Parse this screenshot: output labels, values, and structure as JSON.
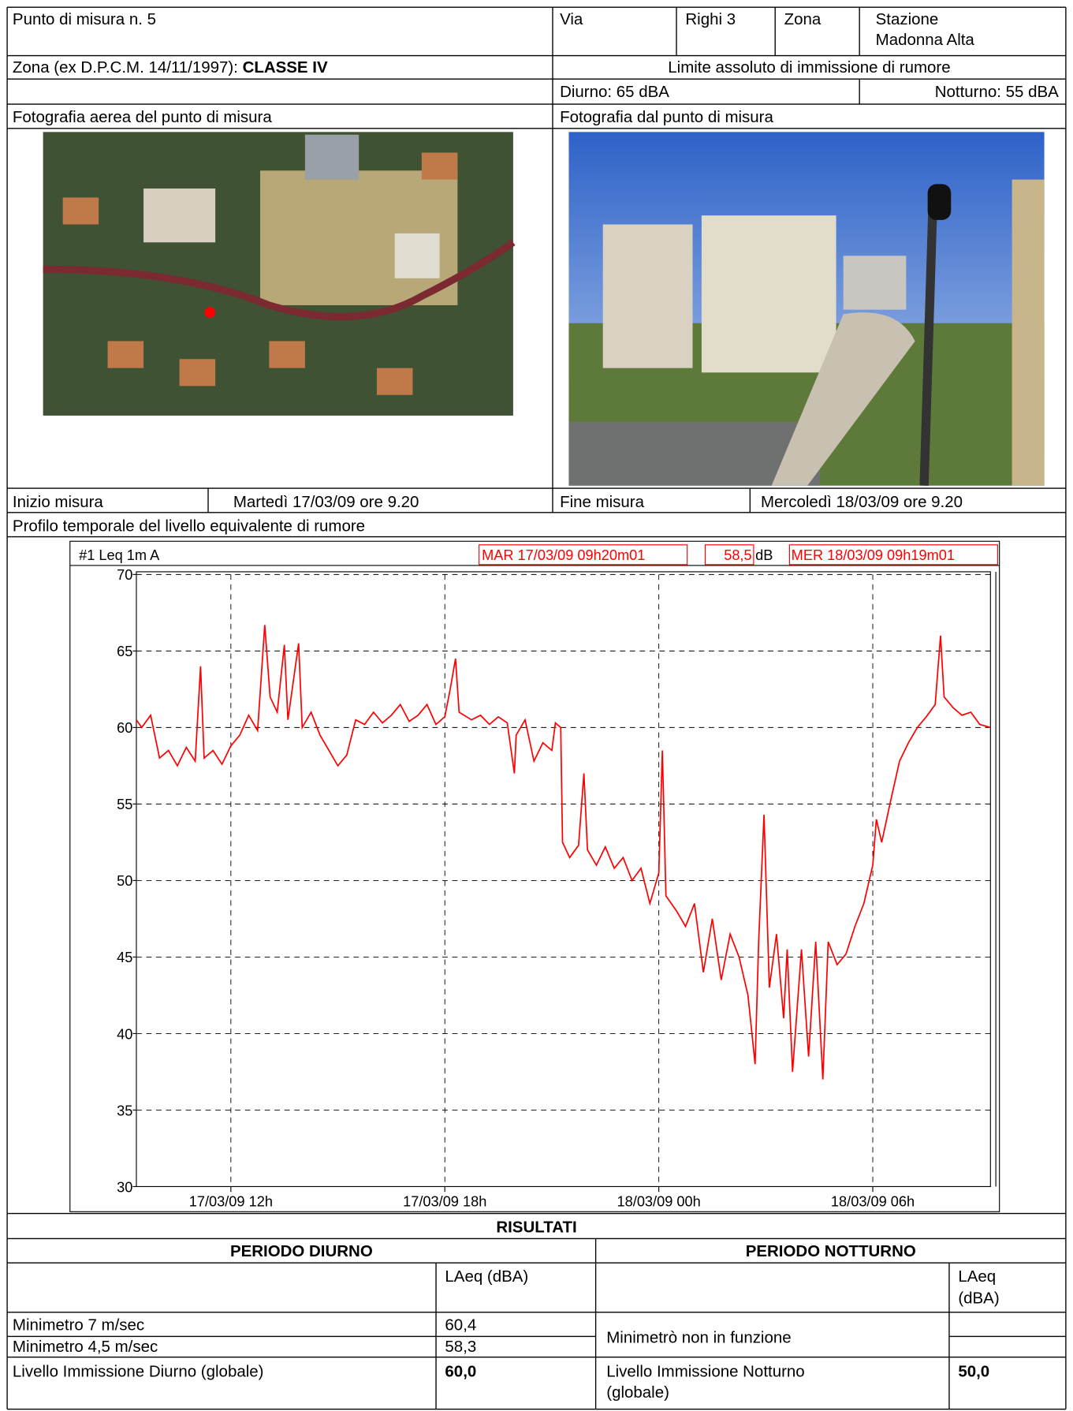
{
  "header": {
    "punto": "Punto di misura n. 5",
    "via_label": "Via",
    "via": "Righi 3",
    "zona_label": "Zona",
    "zona": [
      "Stazione",
      "Madonna Alta"
    ],
    "classe_label": "Zona (ex D.P.C.M. 14/11/1997): ",
    "classe": "CLASSE IV",
    "limite": "Limite assoluto di immissione di rumore",
    "diurno": "Diurno: 65 dBA",
    "notturno": "Notturno: 55 dBA",
    "foto_aerea": "Fotografia aerea del punto di misura",
    "foto_punto": "Fotografia dal punto di misura",
    "inizio_label": "Inizio misura",
    "inizio": "Martedì 17/03/09 ore 9.20",
    "fine_label": "Fine misura",
    "fine": "Mercoledì 18/03/09 ore 9.20",
    "profilo": "Profilo temporale del livello equivalente di rumore"
  },
  "results": {
    "title": "RISULTATI",
    "diurno_title": "PERIODO DIURNO",
    "notturno_title": "PERIODO NOTTURNO",
    "laeq_d": "LAeq (dBA)",
    "laeq_n": [
      "LAeq",
      "(dBA)"
    ],
    "min7": "Minimetro 7 m/sec",
    "min7_val": "60,4",
    "min45": "Minimetro 4,5 m/sec",
    "min45_val": "58,3",
    "min_n": "Minimetrò non in funzione",
    "liv_d": "Livello Immissione Diurno (globale)",
    "liv_d_val": "60,0",
    "liv_n": [
      "Livello Immissione Notturno",
      "(globale)"
    ],
    "liv_n_val": "50,0"
  },
  "chart_data": {
    "type": "line",
    "label": "#1 Leq 1m A",
    "start": "MAR 17/03/09 09h20m01",
    "leq": "58,5",
    "unit": "dB",
    "end": "MER 18/03/09 09h19m01",
    "x": [
      9.35,
      9.5,
      9.75,
      10,
      10.25,
      10.5,
      10.75,
      11,
      11.15,
      11.25,
      11.5,
      11.75,
      12,
      12.25,
      12.5,
      12.75,
      12.95,
      13.1,
      13.3,
      13.5,
      13.6,
      13.9,
      14,
      14.25,
      14.5,
      14.75,
      15,
      15.25,
      15.5,
      15.75,
      16,
      16.25,
      16.5,
      16.75,
      17,
      17.25,
      17.5,
      17.75,
      18,
      18.15,
      18.3,
      18.4,
      18.75,
      19,
      19.25,
      19.5,
      19.75,
      19.95,
      20,
      20.25,
      20.5,
      20.75,
      21,
      21.1,
      21.25,
      21.3,
      21.5,
      21.75,
      21.9,
      22,
      22.25,
      22.5,
      22.75,
      23,
      23.25,
      23.5,
      23.75,
      24,
      24.1,
      24.2,
      24.5,
      24.75,
      25,
      25.25,
      25.5,
      25.75,
      26,
      26.25,
      26.5,
      26.7,
      26.8,
      26.95,
      27.1,
      27.3,
      27.5,
      27.6,
      27.75,
      28,
      28.2,
      28.4,
      28.6,
      28.75,
      29,
      29.25,
      29.5,
      29.75,
      30,
      30.1,
      30.25,
      30.5,
      30.75,
      31,
      31.25,
      31.5,
      31.75,
      31.9,
      32,
      32.25,
      32.5,
      32.75,
      33,
      33.3
    ],
    "series": [
      {
        "color": "#ff0000",
        "values": [
          60.5,
          60,
          60.8,
          58,
          58.5,
          57.5,
          58.7,
          57.8,
          64,
          58,
          58.5,
          57.6,
          58.8,
          59.5,
          60.8,
          59.8,
          66.7,
          62,
          61,
          65.4,
          60.5,
          65.5,
          60,
          61,
          59.5,
          58.5,
          57.5,
          58.2,
          60.5,
          60.2,
          61,
          60.3,
          60.8,
          61.5,
          60.4,
          60.8,
          61.5,
          60.2,
          60.7,
          62.5,
          64.5,
          61,
          60.5,
          60.8,
          60.2,
          60.7,
          60.3,
          57,
          59.5,
          60.5,
          57.8,
          59,
          58.5,
          60.3,
          60,
          52.5,
          51.5,
          52.3,
          57,
          52,
          51,
          52.2,
          50.8,
          51.5,
          50,
          50.8,
          48.5,
          50.5,
          58.5,
          49,
          48,
          47,
          48.5,
          44,
          47.5,
          43.5,
          46.5,
          45,
          42.5,
          38,
          46,
          54.3,
          43,
          46.5,
          41,
          45.5,
          37.5,
          45.5,
          38.5,
          46,
          37,
          46,
          44.5,
          45.2,
          47,
          48.5,
          51,
          54,
          52.5,
          55.2,
          57.8,
          59,
          60,
          60.7,
          61.5,
          66,
          62,
          61.3,
          60.8,
          61,
          60.2,
          60
        ]
      }
    ],
    "xlim": [
      9.35,
      33.3
    ],
    "ylim": [
      30,
      70
    ],
    "xticks": [
      {
        "value": 12,
        "label": "17/03/09 12h"
      },
      {
        "value": 18,
        "label": "17/03/09 18h"
      },
      {
        "value": 24,
        "label": "18/03/09 00h"
      },
      {
        "value": 30,
        "label": "18/03/09 06h"
      }
    ],
    "yticks": [
      30,
      35,
      40,
      45,
      50,
      55,
      60,
      65,
      70
    ],
    "grid": true
  }
}
